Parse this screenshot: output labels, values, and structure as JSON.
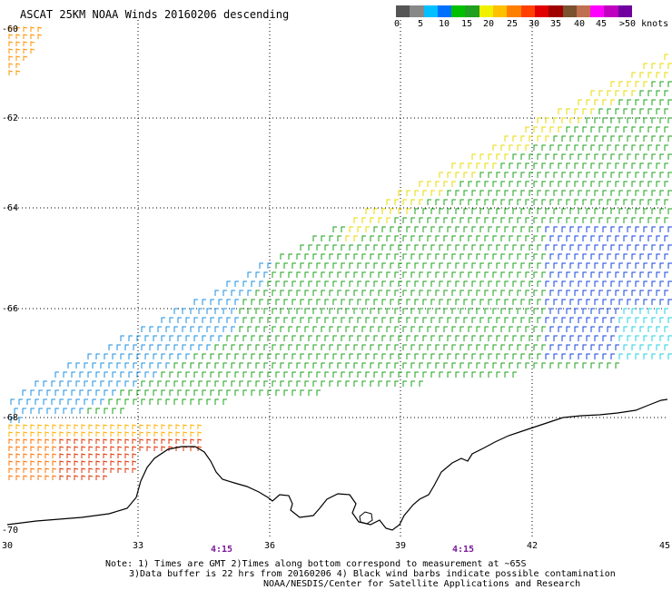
{
  "title": "ASCAT 25KM NOAA Winds 20160206 descending",
  "legend": {
    "labels": [
      "0",
      "5",
      "10",
      "15",
      "20",
      "25",
      "30",
      "35",
      "40",
      "45",
      ">50 knots"
    ],
    "colors": [
      "#555555",
      "#888888",
      "#00c0ff",
      "#0070ff",
      "#00c000",
      "#20a020",
      "#f0f000",
      "#ffc000",
      "#ff8000",
      "#ff4000",
      "#e00000",
      "#a00000",
      "#7a5230",
      "#c07050",
      "#ff00ff",
      "#c000c0",
      "#7000a0"
    ]
  },
  "axes": {
    "lat_labels": [
      "-60",
      "-62",
      "-64",
      "-66",
      "-68",
      "-70"
    ],
    "lon_labels": [
      "30",
      "33",
      "36",
      "39",
      "42",
      "45"
    ]
  },
  "times": [
    "4:15",
    "4:15"
  ],
  "notes": {
    "line1": "Note: 1) Times are GMT 2)Times along bottom correspond to measurement at ~65S",
    "line2": "3)Data buffer is 22 hrs from 20160206 4) Black wind barbs indicate possible contamination",
    "line3": "NOAA/NESDIS/Center for Satellite Applications and Research"
  }
}
